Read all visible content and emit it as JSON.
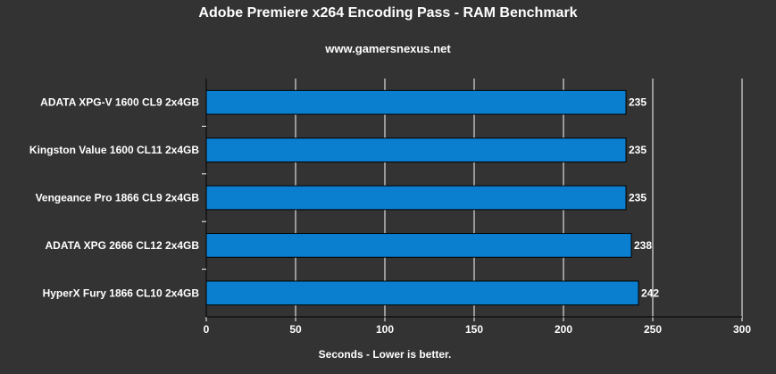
{
  "chart_data": {
    "type": "bar",
    "orientation": "horizontal",
    "title": "Adobe Premiere x264 Encoding Pass - RAM Benchmark",
    "subtitle": "www.gamersnexus.net",
    "xlabel": "Seconds - Lower is better.",
    "ylabel": "",
    "categories": [
      "ADATA XPG-V 1600 CL9 2x4GB",
      "Kingston Value 1600 CL11 2x4GB",
      "Vengeance Pro 1866 CL9 2x4GB",
      "ADATA XPG 2666 CL12 2x4GB",
      "HyperX Fury 1866 CL10 2x4GB"
    ],
    "values": [
      235,
      235,
      235,
      238,
      242
    ],
    "xlim": [
      0,
      300
    ],
    "x_ticks": [
      "0",
      "50",
      "100",
      "150",
      "200",
      "250",
      "300"
    ],
    "grid": true,
    "legend": "none",
    "colors": {
      "background": "#333333",
      "bar_fill": "#0a7fd0",
      "bar_stroke": "#000000",
      "grid": "#ffffff",
      "text": "#ffffff"
    }
  }
}
